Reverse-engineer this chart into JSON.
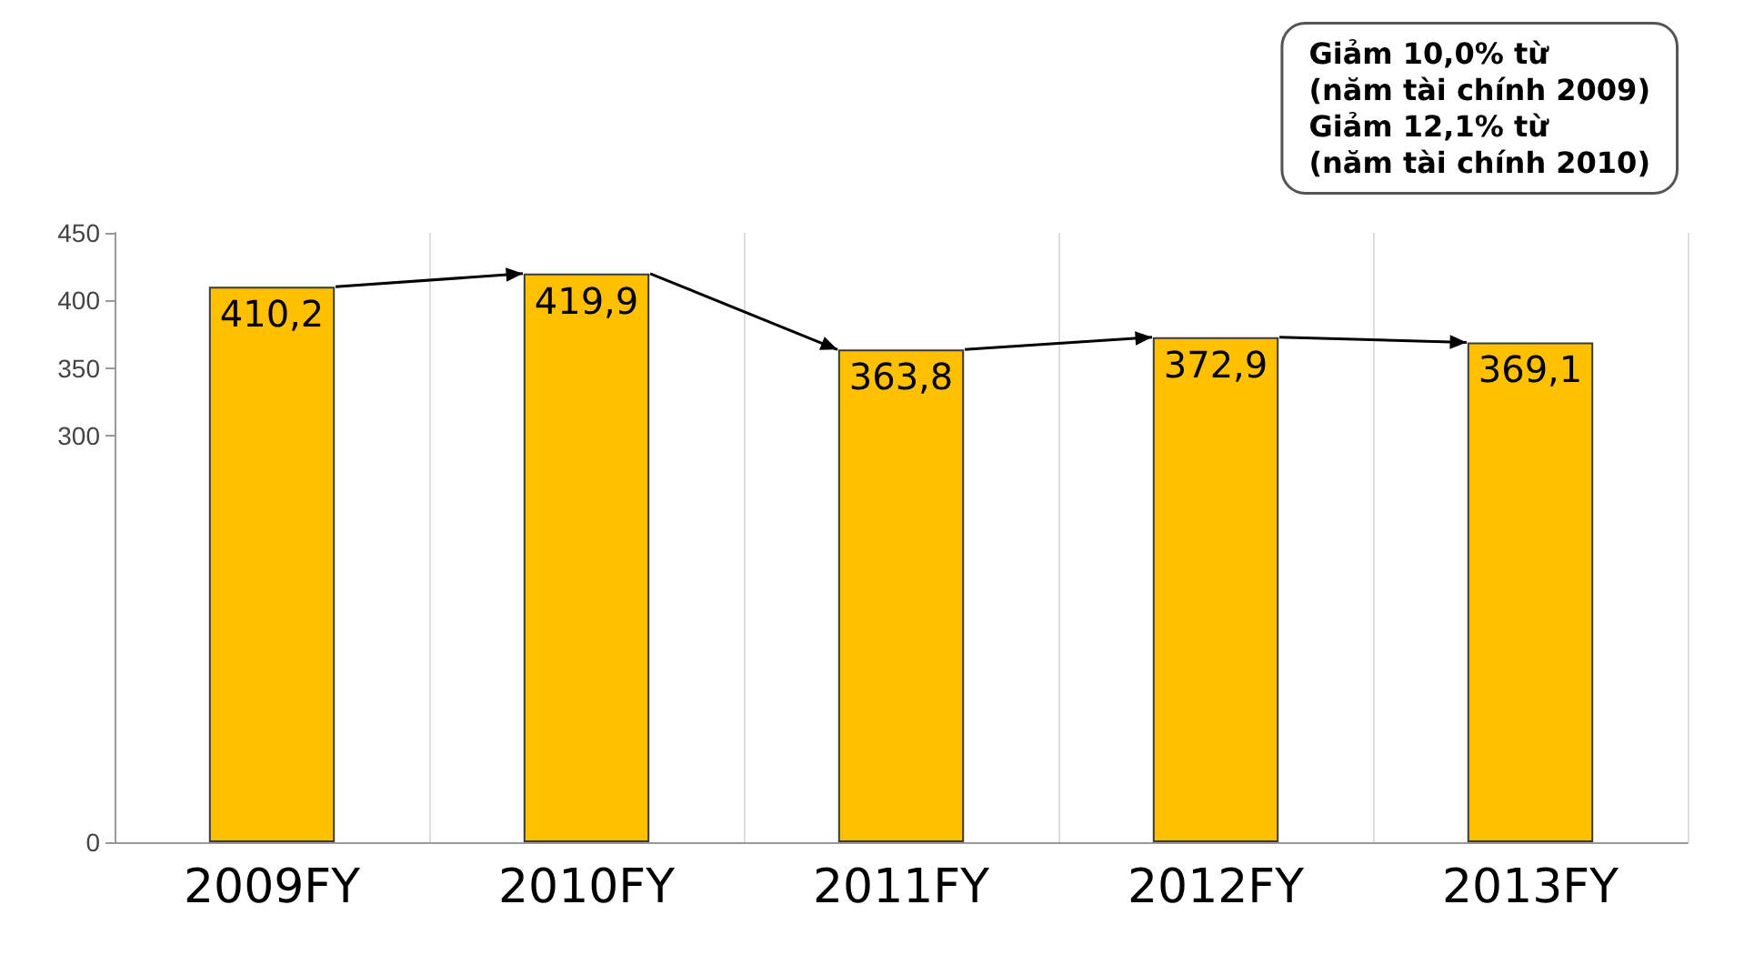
{
  "chart_data": {
    "type": "bar",
    "categories": [
      "2009FY",
      "2010FY",
      "2011FY",
      "2012FY",
      "2013FY"
    ],
    "values": [
      410.2,
      419.9,
      363.8,
      372.9,
      369.1
    ],
    "value_labels": [
      "410,2",
      "419,9",
      "363,8",
      "372,9",
      "369,1"
    ],
    "color": "#ffc000",
    "ylim": [
      0,
      450
    ],
    "yticks": [
      0,
      300,
      350,
      400,
      450
    ],
    "grid": "x",
    "annotations": [
      "Giảm 10,0% từ\n(năm tài chính 2009)\nGiảm 12,1% từ\n(năm tài chính 2010)"
    ]
  }
}
